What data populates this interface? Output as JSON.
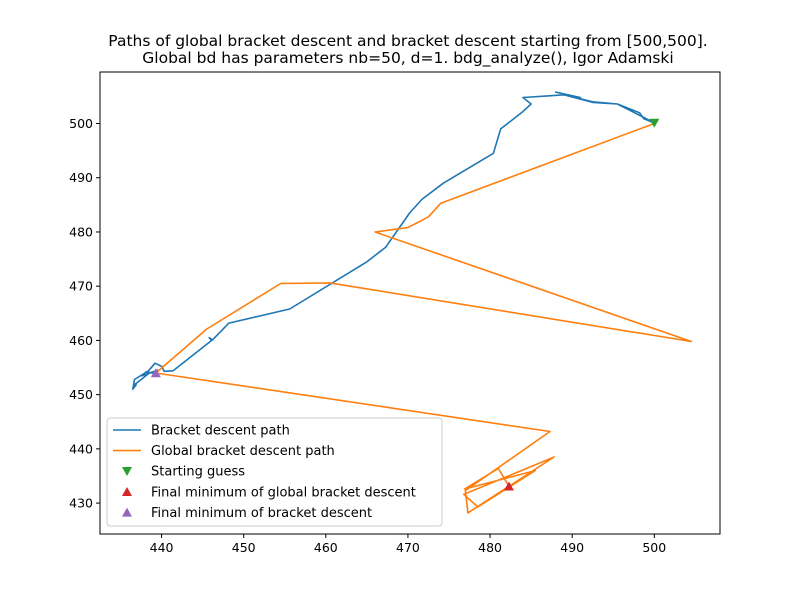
{
  "chart_data": {
    "type": "line",
    "title_lines": [
      "Paths of global bracket descent and bracket descent starting from [500,500].",
      "Global bd has parameters nb=50, d=1. bdg_analyze(), Igor Adamski"
    ],
    "xlabel": "",
    "ylabel": "",
    "xlim": [
      432.5,
      508
    ],
    "ylim": [
      424.3,
      509.5
    ],
    "xticks": [
      440,
      450,
      460,
      470,
      480,
      490,
      500
    ],
    "yticks": [
      430,
      440,
      450,
      460,
      470,
      480,
      490,
      500
    ],
    "grid": false,
    "legend_position": "lower left",
    "series": [
      {
        "name": "Bracket descent path",
        "color": "#1f77b4",
        "kind": "line",
        "x": [
          488.0,
          491.0,
          489.0,
          492.5,
          495.5,
          498.2,
          498.7,
          500.0,
          498.5,
          495.5,
          492.5,
          489.0,
          487.0,
          484.0,
          485.0,
          484.0,
          481.3,
          480.4,
          474.3,
          471.7,
          470.2,
          467.3,
          465.0,
          455.6,
          448.2,
          446.2,
          445.8,
          446.1,
          441.4,
          440.3,
          440.0,
          439.2,
          438.4,
          436.7,
          436.5,
          436.9,
          436.6,
          438.6,
          439.6,
          438.1,
          437.6,
          439.5
        ],
        "y": [
          505.8,
          504.8,
          505.3,
          503.9,
          503.6,
          502.0,
          500.9,
          500.1,
          501.3,
          503.6,
          504.0,
          505.3,
          505.1,
          504.8,
          503.6,
          502.2,
          499.0,
          494.5,
          489.0,
          486.0,
          483.5,
          477.2,
          474.5,
          465.8,
          463.2,
          460.1,
          460.5,
          460.0,
          454.4,
          454.3,
          455.2,
          455.8,
          454.4,
          452.8,
          451.0,
          451.8,
          451.7,
          454.1,
          453.8,
          454.2,
          453.5,
          454.5
        ]
      },
      {
        "name": "Global bracket descent path",
        "color": "#ff7f0e",
        "kind": "line",
        "x": [
          500.0,
          474.0,
          472.5,
          470.0,
          466.0,
          504.5,
          460.5,
          454.5,
          445.5,
          439.3,
          487.3,
          477.0,
          477.3,
          487.8,
          476.8,
          478.5,
          485.5,
          476.9,
          481.0,
          482.3
        ],
        "y": [
          500.0,
          485.3,
          482.8,
          480.8,
          480.0,
          459.8,
          470.6,
          470.5,
          462.1,
          454.0,
          443.2,
          432.3,
          428.2,
          438.5,
          431.6,
          429.3,
          436.0,
          432.6,
          436.4,
          433.1
        ]
      },
      {
        "name": "Starting guess",
        "color": "#2ca02c",
        "kind": "marker",
        "marker": "triangle-down",
        "x": [
          500.0
        ],
        "y": [
          500.1
        ]
      },
      {
        "name": "Final minimum of global bracket descent",
        "color": "#d62728",
        "kind": "marker",
        "marker": "triangle-up",
        "x": [
          482.3
        ],
        "y": [
          433.1
        ]
      },
      {
        "name": "Final minimum of bracket descent",
        "color": "#9467bd",
        "kind": "marker",
        "marker": "triangle-up",
        "x": [
          439.3
        ],
        "y": [
          454.0
        ]
      }
    ]
  }
}
